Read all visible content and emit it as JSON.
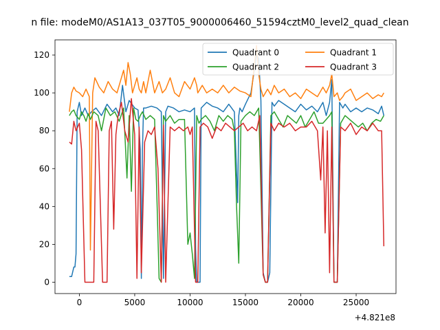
{
  "chart_data": {
    "type": "line",
    "title": "n file: modeM0/AS1A13_037T05_9000006460_51594cztM0_level2_quad_clean",
    "xlabel": "",
    "ylabel": "",
    "x_offset_label": "+4.821e8",
    "xlim": [
      -2200,
      28600
    ],
    "ylim": [
      -6,
      128
    ],
    "x_ticks": [
      0,
      5000,
      10000,
      15000,
      20000,
      25000
    ],
    "x_tick_labels": [
      "0",
      "5000",
      "10000",
      "15000",
      "20000",
      "25000"
    ],
    "y_ticks": [
      0,
      20,
      40,
      60,
      80,
      100,
      120
    ],
    "y_tick_labels": [
      "0",
      "20",
      "40",
      "60",
      "80",
      "100",
      "120"
    ],
    "grid": false,
    "legend": "top-right",
    "legend_columns": 2,
    "series": [
      {
        "name": "Quadrant 0",
        "color": "#1f77b4",
        "x": [
          -900,
          -700,
          -500,
          -400,
          -300,
          -200,
          0,
          200,
          500,
          800,
          1100,
          1500,
          2000,
          2500,
          3000,
          3300,
          3600,
          3900,
          4200,
          4500,
          5000,
          5300,
          5500,
          5600,
          5700,
          5800,
          6000,
          6500,
          7000,
          7400,
          7600,
          7800,
          8000,
          8500,
          9000,
          9500,
          10000,
          10400,
          10500,
          10600,
          10700,
          10900,
          11000,
          11500,
          12000,
          12500,
          13000,
          13500,
          14000,
          14300,
          14400,
          14500,
          14700,
          15000,
          15500,
          16000,
          16200,
          16400,
          16600,
          16800,
          17000,
          17200,
          17400,
          17600,
          18000,
          18500,
          19000,
          19500,
          20000,
          20500,
          21000,
          21500,
          22000,
          22300,
          22600,
          22800,
          23000,
          23300,
          23500,
          23800,
          24000,
          24500,
          25000,
          25500,
          26000,
          26500,
          27000,
          27300,
          27500
        ],
        "values": [
          3,
          3,
          8,
          8,
          15,
          90,
          95,
          88,
          92,
          88,
          90,
          92,
          88,
          94,
          90,
          92,
          88,
          104,
          90,
          96,
          92,
          91,
          70,
          2,
          70,
          92,
          92,
          93,
          92,
          90,
          2,
          90,
          93,
          92,
          90,
          91,
          90,
          92,
          18,
          0,
          0,
          0,
          92,
          95,
          93,
          92,
          90,
          94,
          90,
          42,
          88,
          92,
          90,
          94,
          100,
          120,
          118,
          96,
          5,
          0,
          0,
          5,
          95,
          93,
          96,
          94,
          92,
          90,
          94,
          91,
          93,
          90,
          95,
          88,
          95,
          107,
          0,
          0,
          95,
          92,
          94,
          90,
          92,
          90,
          92,
          91,
          89,
          93,
          88
        ]
      },
      {
        "name": "Quadrant 1",
        "color": "#ff7f0e",
        "x": [
          -900,
          -700,
          -500,
          -300,
          0,
          300,
          600,
          900,
          1000,
          1200,
          1400,
          1800,
          2200,
          2600,
          3000,
          3400,
          3800,
          4000,
          4200,
          4400,
          4600,
          4800,
          5200,
          5400,
          5600,
          5800,
          6000,
          6400,
          6800,
          7200,
          7500,
          7800,
          8200,
          8600,
          9000,
          9500,
          10000,
          10400,
          10600,
          10700,
          10900,
          11100,
          11500,
          12000,
          12500,
          13000,
          13500,
          14000,
          14500,
          15000,
          15500,
          16000,
          16200,
          16400,
          16600,
          16800,
          17000,
          17300,
          17600,
          18000,
          18500,
          19000,
          19500,
          20000,
          20500,
          21000,
          21500,
          22000,
          22300,
          22600,
          22800,
          23000,
          23300,
          23500,
          23800,
          24000,
          24500,
          25000,
          25500,
          26000,
          26500,
          27000,
          27300,
          27500
        ],
        "values": [
          90,
          100,
          103,
          101,
          100,
          98,
          102,
          98,
          17,
          100,
          108,
          103,
          100,
          106,
          102,
          100,
          108,
          112,
          104,
          116,
          110,
          100,
          108,
          102,
          100,
          106,
          100,
          112,
          100,
          106,
          100,
          102,
          108,
          100,
          98,
          106,
          102,
          108,
          104,
          100,
          102,
          104,
          100,
          102,
          100,
          104,
          100,
          103,
          101,
          100,
          98,
          125,
          110,
          102,
          98,
          100,
          102,
          99,
          104,
          100,
          102,
          98,
          100,
          97,
          102,
          100,
          98,
          103,
          100,
          104,
          110,
          98,
          100,
          96,
          98,
          100,
          102,
          96,
          98,
          100,
          97,
          99,
          98,
          100
        ]
      },
      {
        "name": "Quadrant 2",
        "color": "#2ca02c",
        "x": [
          -900,
          -700,
          -500,
          -300,
          0,
          200,
          400,
          600,
          800,
          1000,
          1300,
          1700,
          2000,
          2400,
          2800,
          3200,
          3600,
          4000,
          4300,
          4500,
          4700,
          4900,
          5100,
          5300,
          5500,
          5700,
          6000,
          6400,
          6800,
          7000,
          7200,
          7400,
          7600,
          7800,
          8200,
          8600,
          9000,
          9500,
          9800,
          10000,
          10200,
          10400,
          10600,
          10800,
          11000,
          11400,
          11800,
          12200,
          12600,
          13000,
          13400,
          13800,
          14000,
          14200,
          14400,
          14600,
          15000,
          15400,
          15800,
          16200,
          16600,
          16800,
          17000,
          17300,
          17600,
          18000,
          18400,
          18800,
          19200,
          19600,
          20000,
          20400,
          20800,
          21200,
          21600,
          22000,
          22300,
          22600,
          22800,
          23000,
          23300,
          23600,
          24000,
          24400,
          24800,
          25200,
          25600,
          26000,
          26400,
          26800,
          27200,
          27500
        ],
        "values": [
          88,
          90,
          91,
          88,
          86,
          90,
          88,
          85,
          89,
          86,
          90,
          88,
          80,
          92,
          88,
          90,
          85,
          92,
          55,
          88,
          48,
          92,
          86,
          85,
          88,
          90,
          86,
          88,
          86,
          45,
          2,
          0,
          88,
          85,
          88,
          84,
          86,
          86,
          20,
          26,
          15,
          2,
          88,
          84,
          86,
          88,
          85,
          80,
          88,
          85,
          88,
          86,
          80,
          40,
          10,
          85,
          88,
          90,
          88,
          92,
          4,
          0,
          0,
          88,
          90,
          86,
          82,
          88,
          86,
          84,
          88,
          82,
          86,
          90,
          84,
          84,
          86,
          88,
          90,
          0,
          0,
          84,
          88,
          86,
          84,
          82,
          84,
          80,
          84,
          86,
          85,
          88
        ]
      },
      {
        "name": "Quadrant 3",
        "color": "#d62728",
        "x": [
          -900,
          -700,
          -500,
          -300,
          0,
          200,
          500,
          700,
          900,
          1100,
          1300,
          1500,
          1700,
          2100,
          2500,
          2700,
          2900,
          3100,
          3300,
          3500,
          3800,
          4100,
          4400,
          4700,
          5000,
          5200,
          5400,
          5600,
          5900,
          6200,
          6500,
          6800,
          7100,
          7400,
          7600,
          7800,
          8200,
          8600,
          9000,
          9400,
          9800,
          10000,
          10200,
          10500,
          10700,
          10900,
          11200,
          11600,
          12000,
          12400,
          12800,
          13200,
          13600,
          14000,
          14400,
          14800,
          15200,
          15600,
          16000,
          16300,
          16600,
          16800,
          17000,
          17300,
          17600,
          18000,
          18500,
          19000,
          19500,
          20000,
          20500,
          21000,
          21500,
          21800,
          22000,
          22200,
          22400,
          22600,
          22800,
          23000,
          23300,
          23600,
          24000,
          24500,
          25000,
          25500,
          26000,
          26500,
          27000,
          27300,
          27500
        ],
        "values": [
          74,
          73,
          85,
          80,
          84,
          70,
          0,
          0,
          0,
          0,
          0,
          85,
          80,
          0,
          0,
          80,
          85,
          28,
          78,
          88,
          95,
          80,
          74,
          97,
          78,
          2,
          82,
          5,
          74,
          80,
          78,
          82,
          60,
          0,
          83,
          0,
          82,
          80,
          82,
          80,
          82,
          78,
          82,
          0,
          0,
          82,
          84,
          82,
          76,
          82,
          80,
          84,
          82,
          80,
          82,
          84,
          80,
          82,
          80,
          88,
          4,
          0,
          0,
          84,
          80,
          84,
          82,
          84,
          80,
          82,
          82,
          85,
          80,
          54,
          82,
          26,
          80,
          5,
          82,
          0,
          0,
          82,
          80,
          84,
          78,
          82,
          80,
          84,
          80,
          80,
          19
        ]
      }
    ]
  }
}
